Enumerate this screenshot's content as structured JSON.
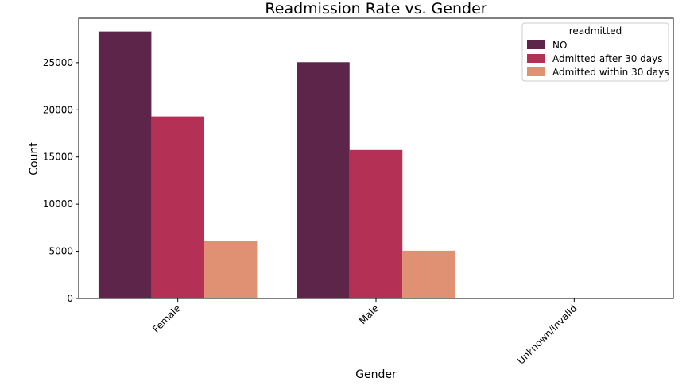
{
  "chart_data": {
    "type": "bar",
    "title": "Readmission Rate vs. Gender",
    "xlabel": "Gender",
    "ylabel": "Count",
    "categories": [
      "Female",
      "Male",
      "Unknown/Invalid"
    ],
    "series": [
      {
        "name": "NO",
        "color": "#5c2549",
        "values": [
          28300,
          25050,
          3
        ]
      },
      {
        "name": "Admitted after 30 days",
        "color": "#b43055",
        "values": [
          19300,
          15750,
          0
        ]
      },
      {
        "name": "Admitted within 30 days",
        "color": "#e19173",
        "values": [
          6080,
          5060,
          0
        ]
      }
    ],
    "ylim": [
      0,
      29700
    ],
    "yticks": [
      0,
      5000,
      10000,
      15000,
      20000,
      25000
    ],
    "grid": false,
    "legend": {
      "title": "readmitted",
      "placement": "top-right"
    },
    "xtick_rotation": 45
  }
}
